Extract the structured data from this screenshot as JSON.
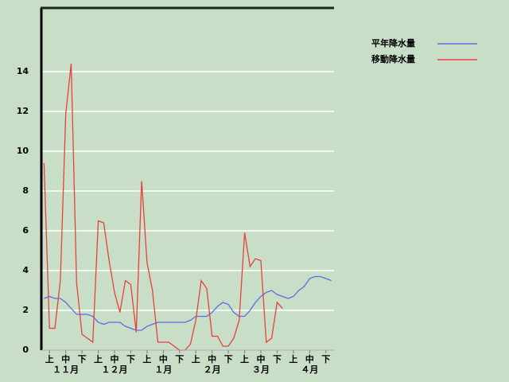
{
  "chart_data": {
    "type": "line",
    "categories": [
      null,
      "上",
      null,
      null,
      "中",
      null,
      null,
      "下",
      null,
      null,
      "上",
      null,
      null,
      "中",
      null,
      null,
      "下",
      null,
      null,
      "上",
      null,
      null,
      "中",
      null,
      null,
      "下",
      null,
      null,
      "上",
      null,
      null,
      "中",
      null,
      null,
      "下",
      null,
      null,
      "上",
      null,
      null,
      "中",
      null,
      null,
      "下",
      null,
      null,
      "上",
      null,
      null,
      "中",
      null,
      null,
      "下",
      null
    ],
    "months": [
      "１１月",
      "１２月",
      "１月",
      "２月",
      "３月",
      "４月"
    ],
    "series": [
      {
        "name": "平年降水量",
        "color": "#5a6ee6",
        "values": [
          2.6,
          2.7,
          2.6,
          2.6,
          2.4,
          2.1,
          1.8,
          1.8,
          1.8,
          1.7,
          1.4,
          1.3,
          1.4,
          1.4,
          1.4,
          1.2,
          1.1,
          1.0,
          1.0,
          1.2,
          1.3,
          1.4,
          1.4,
          1.4,
          1.4,
          1.4,
          1.4,
          1.5,
          1.7,
          1.7,
          1.7,
          1.9,
          2.2,
          2.4,
          2.3,
          1.9,
          1.7,
          1.7,
          2.0,
          2.4,
          2.7,
          2.9,
          3.0,
          2.8,
          2.7,
          2.6,
          2.7,
          3.0,
          3.2,
          3.6,
          3.7,
          3.7,
          3.6,
          3.5
        ]
      },
      {
        "name": "移動降水量",
        "color": "#e8403c",
        "values": [
          9.4,
          1.1,
          1.1,
          3.5,
          11.9,
          14.4,
          3.4,
          0.8,
          0.6,
          0.4,
          6.5,
          6.4,
          4.5,
          2.9,
          1.9,
          3.5,
          3.3,
          0.9,
          8.5,
          4.4,
          3.0,
          0.4,
          0.4,
          0.4,
          0.2,
          0,
          0,
          0.3,
          1.5,
          3.5,
          3.1,
          0.7,
          0.7,
          0.2,
          0.2,
          0.6,
          1.5,
          5.9,
          4.2,
          4.6,
          4.5,
          0.4,
          0.6,
          2.4,
          2.1,
          null,
          null,
          null,
          null,
          null,
          null,
          null,
          null,
          null
        ]
      }
    ],
    "ylim": [
      0,
      17.2
    ],
    "yticks": [
      0,
      2,
      4,
      6,
      8,
      10,
      12,
      14
    ],
    "grid": true,
    "legend": "top-right"
  }
}
